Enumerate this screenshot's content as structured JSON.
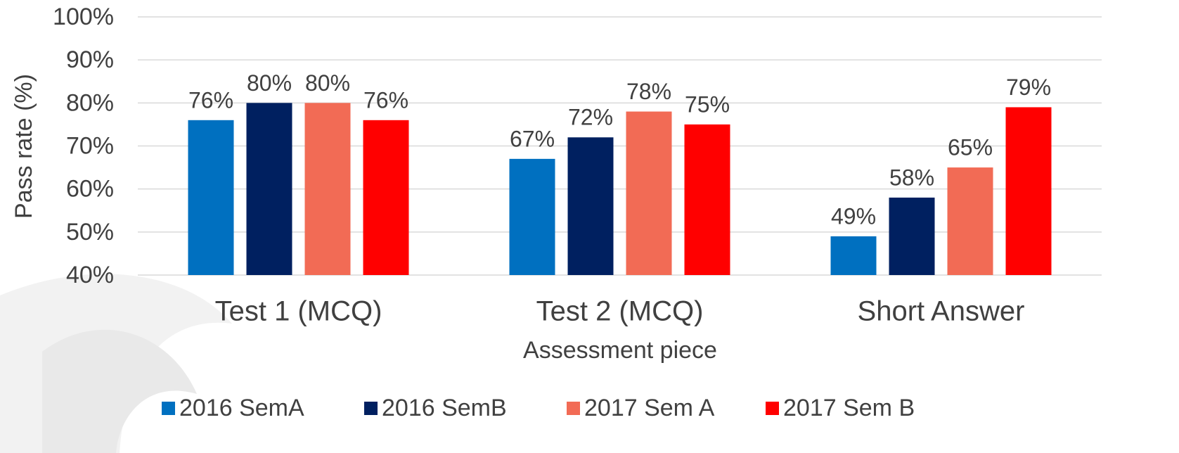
{
  "chart_data": {
    "type": "bar",
    "x_label": "Assessment piece",
    "y_label": "Pass rate (%)",
    "categories": [
      "Test 1 (MCQ)",
      "Test 2 (MCQ)",
      "Short Answer"
    ],
    "series": [
      {
        "name": "2016 SemA",
        "color": "#0070c0",
        "values": [
          76,
          67,
          49
        ],
        "value_labels": [
          "76%",
          "67%",
          "49%"
        ]
      },
      {
        "name": "2016 SemB",
        "color": "#002060",
        "values": [
          80,
          72,
          58
        ],
        "value_labels": [
          "80%",
          "72%",
          "58%"
        ]
      },
      {
        "name": "2017 Sem A",
        "color": "#f26b55",
        "values": [
          80,
          78,
          65
        ],
        "value_labels": [
          "80%",
          "78%",
          "65%"
        ]
      },
      {
        "name": "2017 Sem B",
        "color": "#ff0000",
        "values": [
          76,
          75,
          79
        ],
        "value_labels": [
          "76%",
          "75%",
          "79%"
        ]
      }
    ],
    "ylim": [
      40,
      100
    ],
    "yticks": [
      {
        "value": 40,
        "label": "40%"
      },
      {
        "value": 50,
        "label": "50%"
      },
      {
        "value": 60,
        "label": "60%"
      },
      {
        "value": 70,
        "label": "70%"
      },
      {
        "value": 80,
        "label": "80%"
      },
      {
        "value": 90,
        "label": "90%"
      },
      {
        "value": 100,
        "label": "100%"
      }
    ],
    "grid": true,
    "legend": "bottom"
  }
}
